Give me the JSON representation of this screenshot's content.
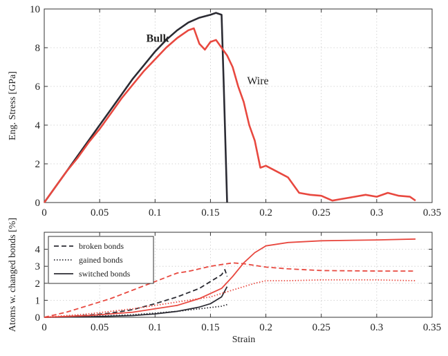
{
  "chart_data": [
    {
      "type": "line",
      "title": "",
      "xlabel": "",
      "ylabel": "Eng. Stress [GPa]",
      "xlim": [
        0,
        0.35
      ],
      "ylim": [
        0,
        10
      ],
      "xticks": [
        0,
        0.05,
        0.1,
        0.15,
        0.2,
        0.25,
        0.3,
        0.35
      ],
      "xtick_labels": [
        "0",
        "0.05",
        "0.1",
        "0.15",
        "0.2",
        "0.25",
        "0.3",
        "0.35"
      ],
      "yticks": [
        0,
        2,
        4,
        6,
        8,
        10
      ],
      "ytick_labels": [
        "0",
        "2",
        "4",
        "6",
        "8",
        "10"
      ],
      "grid": true,
      "annotations": [
        {
          "text": "Bulk",
          "series": "Bulk",
          "x": 0.092,
          "y": 8.3,
          "color": "#2b2b33"
        },
        {
          "text": "Wire",
          "series": "Wire",
          "x": 0.183,
          "y": 6.1,
          "color": "#e8483f"
        }
      ],
      "series": [
        {
          "name": "Bulk",
          "color": "#2b2b33",
          "x": [
            0,
            0.01,
            0.02,
            0.03,
            0.04,
            0.05,
            0.06,
            0.07,
            0.08,
            0.09,
            0.1,
            0.11,
            0.12,
            0.13,
            0.14,
            0.15,
            0.155,
            0.16,
            0.162,
            0.164,
            0.165
          ],
          "y": [
            0,
            0.8,
            1.6,
            2.4,
            3.2,
            4.0,
            4.8,
            5.6,
            6.4,
            7.1,
            7.8,
            8.4,
            8.9,
            9.3,
            9.55,
            9.7,
            9.8,
            9.7,
            6.0,
            2.0,
            0
          ]
        },
        {
          "name": "Wire",
          "color": "#e8483f",
          "x": [
            0,
            0.01,
            0.02,
            0.03,
            0.04,
            0.05,
            0.06,
            0.07,
            0.08,
            0.09,
            0.1,
            0.11,
            0.12,
            0.13,
            0.135,
            0.14,
            0.145,
            0.15,
            0.155,
            0.16,
            0.165,
            0.17,
            0.175,
            0.18,
            0.185,
            0.19,
            0.195,
            0.2,
            0.21,
            0.22,
            0.23,
            0.24,
            0.25,
            0.26,
            0.27,
            0.28,
            0.29,
            0.3,
            0.31,
            0.32,
            0.33,
            0.335
          ],
          "y": [
            0,
            0.8,
            1.6,
            2.3,
            3.1,
            3.8,
            4.6,
            5.4,
            6.1,
            6.8,
            7.4,
            8.0,
            8.5,
            8.9,
            9.0,
            8.2,
            7.9,
            8.3,
            8.4,
            8.0,
            7.6,
            7.0,
            6.0,
            5.2,
            4.0,
            3.2,
            1.8,
            1.9,
            1.6,
            1.3,
            0.5,
            0.4,
            0.35,
            0.1,
            0.2,
            0.3,
            0.4,
            0.3,
            0.5,
            0.35,
            0.3,
            0.1
          ]
        }
      ]
    },
    {
      "type": "line",
      "title": "",
      "xlabel": "Strain",
      "ylabel": "Atoms w. changed bonds [%]",
      "xlim": [
        0,
        0.35
      ],
      "ylim": [
        0,
        5
      ],
      "xticks": [
        0,
        0.05,
        0.1,
        0.15,
        0.2,
        0.25,
        0.3,
        0.35
      ],
      "xtick_labels": [
        "0",
        "0.05",
        "0.1",
        "0.15",
        "0.2",
        "0.25",
        "0.3",
        "0.35"
      ],
      "yticks": [
        0,
        1,
        2,
        3,
        4
      ],
      "ytick_labels": [
        "0",
        "1",
        "2",
        "3",
        "4"
      ],
      "grid": true,
      "legend": {
        "position": "top-left",
        "entries": [
          {
            "label": "broken bonds",
            "style": "dashed"
          },
          {
            "label": "gained bonds",
            "style": "dotted"
          },
          {
            "label": "switched bonds",
            "style": "solid"
          }
        ]
      },
      "series": [
        {
          "group": "Bulk",
          "kind": "broken bonds",
          "style": "dashed",
          "color": "#2b2b33",
          "x": [
            0,
            0.02,
            0.04,
            0.06,
            0.08,
            0.1,
            0.12,
            0.14,
            0.15,
            0.16,
            0.163,
            0.165
          ],
          "y": [
            0,
            0.05,
            0.12,
            0.25,
            0.45,
            0.8,
            1.2,
            1.7,
            2.1,
            2.5,
            2.8,
            2.4
          ]
        },
        {
          "group": "Bulk",
          "kind": "gained bonds",
          "style": "dotted",
          "color": "#2b2b33",
          "x": [
            0,
            0.04,
            0.08,
            0.1,
            0.12,
            0.14,
            0.16,
            0.165
          ],
          "y": [
            0,
            0.05,
            0.15,
            0.25,
            0.35,
            0.5,
            0.65,
            0.75
          ]
        },
        {
          "group": "Bulk",
          "kind": "switched bonds",
          "style": "solid",
          "color": "#2b2b33",
          "x": [
            0,
            0.04,
            0.08,
            0.1,
            0.12,
            0.14,
            0.15,
            0.16,
            0.165
          ],
          "y": [
            0,
            0.03,
            0.1,
            0.2,
            0.35,
            0.6,
            0.8,
            1.2,
            1.8
          ]
        },
        {
          "group": "Wire",
          "kind": "broken bonds",
          "style": "dashed",
          "color": "#e8483f",
          "x": [
            0,
            0.02,
            0.04,
            0.06,
            0.08,
            0.1,
            0.12,
            0.13,
            0.14,
            0.15,
            0.16,
            0.17,
            0.18,
            0.2,
            0.22,
            0.25,
            0.3,
            0.335
          ],
          "y": [
            0,
            0.3,
            0.7,
            1.1,
            1.6,
            2.1,
            2.6,
            2.7,
            2.85,
            3.0,
            3.1,
            3.2,
            3.15,
            2.95,
            2.85,
            2.75,
            2.72,
            2.72
          ]
        },
        {
          "group": "Wire",
          "kind": "gained bonds",
          "style": "dotted",
          "color": "#e8483f",
          "x": [
            0,
            0.04,
            0.08,
            0.12,
            0.15,
            0.17,
            0.19,
            0.2,
            0.22,
            0.25,
            0.3,
            0.335
          ],
          "y": [
            0,
            0.2,
            0.5,
            0.9,
            1.2,
            1.6,
            2.0,
            2.15,
            2.15,
            2.2,
            2.2,
            2.15
          ]
        },
        {
          "group": "Wire",
          "kind": "switched bonds",
          "style": "solid",
          "color": "#e8483f",
          "x": [
            0,
            0.04,
            0.08,
            0.12,
            0.14,
            0.16,
            0.17,
            0.18,
            0.19,
            0.2,
            0.22,
            0.25,
            0.3,
            0.335
          ],
          "y": [
            0,
            0.1,
            0.3,
            0.7,
            1.1,
            1.7,
            2.4,
            3.2,
            3.8,
            4.2,
            4.4,
            4.5,
            4.55,
            4.6
          ]
        }
      ]
    }
  ]
}
